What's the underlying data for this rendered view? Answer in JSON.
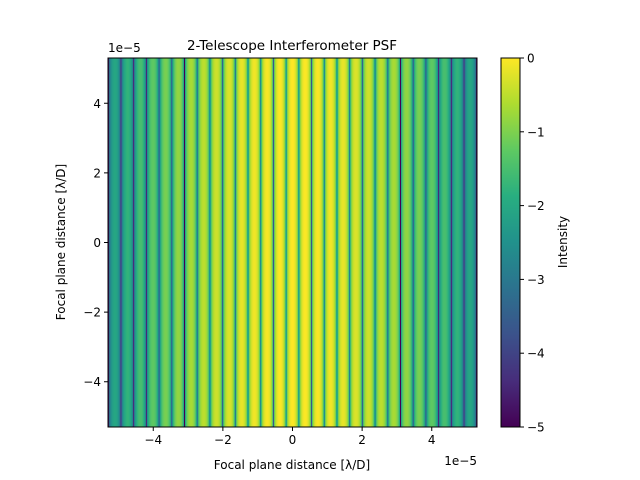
{
  "chart_data": {
    "type": "heatmap",
    "title": "2-Telescope Interferometer PSF",
    "xlabel": "Focal plane distance [λ/D]",
    "ylabel": "Focal plane distance [λ/D]",
    "x_offset_text": "1e−5",
    "y_offset_text": "1e−5",
    "xlim": [
      -5.3,
      5.3
    ],
    "ylim": [
      -5.3,
      5.3
    ],
    "x_ticks": [
      -4,
      -2,
      0,
      2,
      4
    ],
    "x_tick_labels": [
      "−4",
      "−2",
      "0",
      "2",
      "4"
    ],
    "y_ticks": [
      -4,
      -2,
      0,
      2,
      4
    ],
    "y_tick_labels": [
      "−4",
      "−2",
      "0",
      "2",
      "4"
    ],
    "colormap": "viridis",
    "colorbar": {
      "label": "Intensity",
      "range": [
        -5,
        0
      ],
      "ticks": [
        0,
        -1,
        -2,
        -3,
        -4,
        -5
      ],
      "tick_labels": [
        "0",
        "−1",
        "−2",
        "−3",
        "−4",
        "−5"
      ]
    },
    "fringe_period": 0.365,
    "envelope_halfwidth": 5.3,
    "envelope_min_log": -2.2,
    "pattern": "vertical cos² fringes under a broad envelope, log10 intensity"
  }
}
